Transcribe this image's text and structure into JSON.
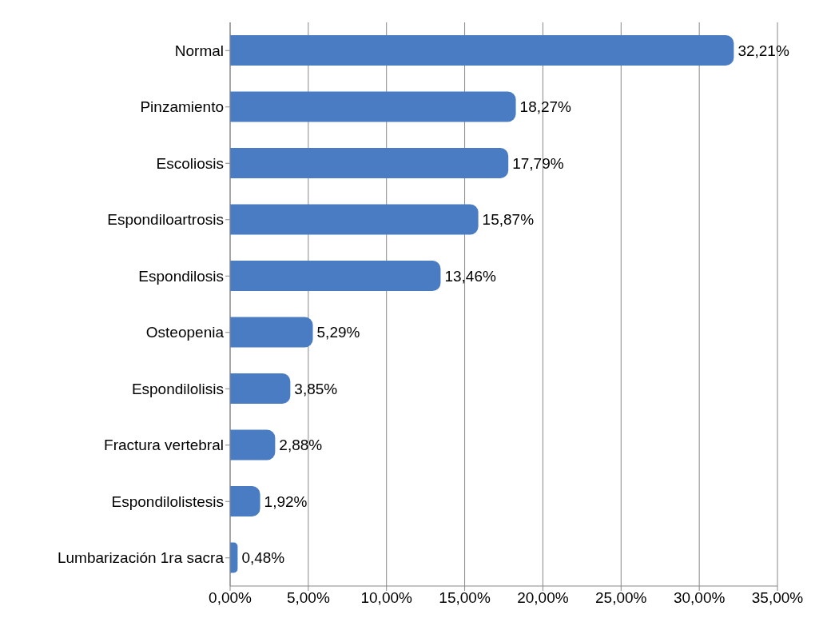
{
  "chart_data": {
    "type": "bar",
    "orientation": "horizontal",
    "categories": [
      "Normal",
      "Pinzamiento",
      "Escoliosis",
      "Espondiloartrosis",
      "Espondilosis",
      "Osteopenia",
      "Espondilolisis",
      "Fractura vertebral",
      "Espondilolistesis",
      "Lumbarización 1ra sacra"
    ],
    "values": [
      32.21,
      18.27,
      17.79,
      15.87,
      13.46,
      5.29,
      3.85,
      2.88,
      1.92,
      0.48
    ],
    "value_labels": [
      "32,21%",
      "18,27%",
      "17,79%",
      "15,87%",
      "13,46%",
      "5,29%",
      "3,85%",
      "2,88%",
      "1,92%",
      "0,48%"
    ],
    "color": "#4a7cc4",
    "xlim": [
      0,
      35
    ],
    "xticks": [
      {
        "value": 0,
        "label": "0,00%"
      },
      {
        "value": 5,
        "label": "5,00%"
      },
      {
        "value": 10,
        "label": "10,00%"
      },
      {
        "value": 15,
        "label": "15,00%"
      },
      {
        "value": 20,
        "label": "20,00%"
      },
      {
        "value": 25,
        "label": "25,00%"
      },
      {
        "value": 30,
        "label": "30,00%"
      },
      {
        "value": 35,
        "label": "35,00%"
      }
    ],
    "grid": "x",
    "legend": false
  }
}
